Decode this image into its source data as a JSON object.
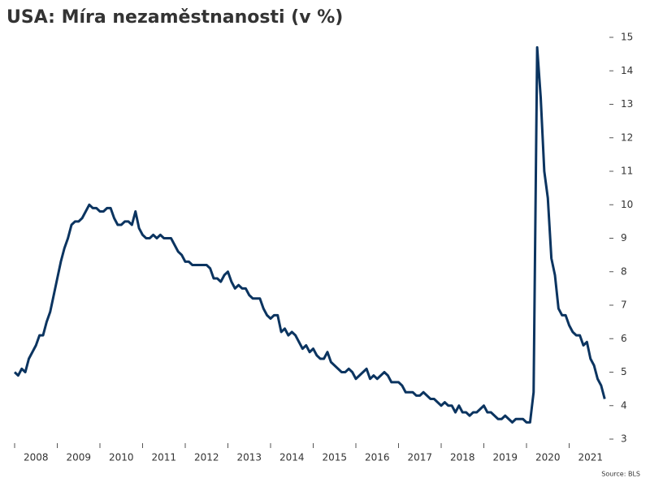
{
  "chart_data": {
    "type": "line",
    "title": "USA: Míra nezaměstnanosti (v %)",
    "source": "Source: BLS",
    "color": "#0b3460",
    "categories": [
      null,
      null,
      null,
      null,
      null,
      null,
      "2008",
      null,
      null,
      null,
      null,
      null,
      null,
      null,
      null,
      null,
      null,
      null,
      "2009",
      null,
      null,
      null,
      null,
      null,
      null,
      null,
      null,
      null,
      null,
      null,
      "2010",
      null,
      null,
      null,
      null,
      null,
      null,
      null,
      null,
      null,
      null,
      null,
      "2011",
      null,
      null,
      null,
      null,
      null,
      null,
      null,
      null,
      null,
      null,
      null,
      "2012",
      null,
      null,
      null,
      null,
      null,
      null,
      null,
      null,
      null,
      null,
      null,
      "2013",
      null,
      null,
      null,
      null,
      null,
      null,
      null,
      null,
      null,
      null,
      null,
      "2014",
      null,
      null,
      null,
      null,
      null,
      null,
      null,
      null,
      null,
      null,
      null,
      "2015",
      null,
      null,
      null,
      null,
      null,
      null,
      null,
      null,
      null,
      null,
      null,
      "2016",
      null,
      null,
      null,
      null,
      null,
      null,
      null,
      null,
      null,
      null,
      null,
      "2017",
      null,
      null,
      null,
      null,
      null,
      null,
      null,
      null,
      null,
      null,
      null,
      "2018",
      null,
      null,
      null,
      null,
      null,
      null,
      null,
      null,
      null,
      null,
      null,
      "2019",
      null,
      null,
      null,
      null,
      null,
      null,
      null,
      null,
      null,
      null,
      null,
      "2020",
      null,
      null,
      null,
      null,
      null,
      null,
      null,
      null,
      null,
      null,
      null,
      "2021",
      null,
      null,
      null,
      null
    ],
    "values": [
      5.0,
      4.9,
      5.1,
      5.0,
      5.4,
      5.6,
      5.8,
      6.1,
      6.1,
      6.5,
      6.8,
      7.3,
      7.8,
      8.3,
      8.7,
      9.0,
      9.4,
      9.5,
      9.5,
      9.6,
      9.8,
      10.0,
      9.9,
      9.9,
      9.8,
      9.8,
      9.9,
      9.9,
      9.6,
      9.4,
      9.4,
      9.5,
      9.5,
      9.4,
      9.8,
      9.3,
      9.1,
      9.0,
      9.0,
      9.1,
      9.0,
      9.1,
      9.0,
      9.0,
      9.0,
      8.8,
      8.6,
      8.5,
      8.3,
      8.3,
      8.2,
      8.2,
      8.2,
      8.2,
      8.2,
      8.1,
      7.8,
      7.8,
      7.7,
      7.9,
      8.0,
      7.7,
      7.5,
      7.6,
      7.5,
      7.5,
      7.3,
      7.2,
      7.2,
      7.2,
      6.9,
      6.7,
      6.6,
      6.7,
      6.7,
      6.2,
      6.3,
      6.1,
      6.2,
      6.1,
      5.9,
      5.7,
      5.8,
      5.6,
      5.7,
      5.5,
      5.4,
      5.4,
      5.6,
      5.3,
      5.2,
      5.1,
      5.0,
      5.0,
      5.1,
      5.0,
      4.8,
      4.9,
      5.0,
      5.1,
      4.8,
      4.9,
      4.8,
      4.9,
      5.0,
      4.9,
      4.7,
      4.7,
      4.7,
      4.6,
      4.4,
      4.4,
      4.4,
      4.3,
      4.3,
      4.4,
      4.3,
      4.2,
      4.2,
      4.1,
      4.0,
      4.1,
      4.0,
      4.0,
      3.8,
      4.0,
      3.8,
      3.8,
      3.7,
      3.8,
      3.8,
      3.9,
      4.0,
      3.8,
      3.8,
      3.7,
      3.6,
      3.6,
      3.7,
      3.6,
      3.5,
      3.6,
      3.6,
      3.6,
      3.5,
      3.5,
      4.4,
      14.7,
      13.2,
      11.0,
      10.2,
      8.4,
      7.9,
      6.9,
      6.7,
      6.7,
      6.4,
      6.2,
      6.1,
      6.1,
      5.8,
      5.9,
      5.4,
      5.2,
      4.8,
      4.6,
      4.2
    ],
    "ylim": [
      3,
      15
    ],
    "yticks": [
      3,
      4,
      5,
      6,
      7,
      8,
      9,
      10,
      11,
      12,
      13,
      14,
      15
    ],
    "grid": false
  }
}
